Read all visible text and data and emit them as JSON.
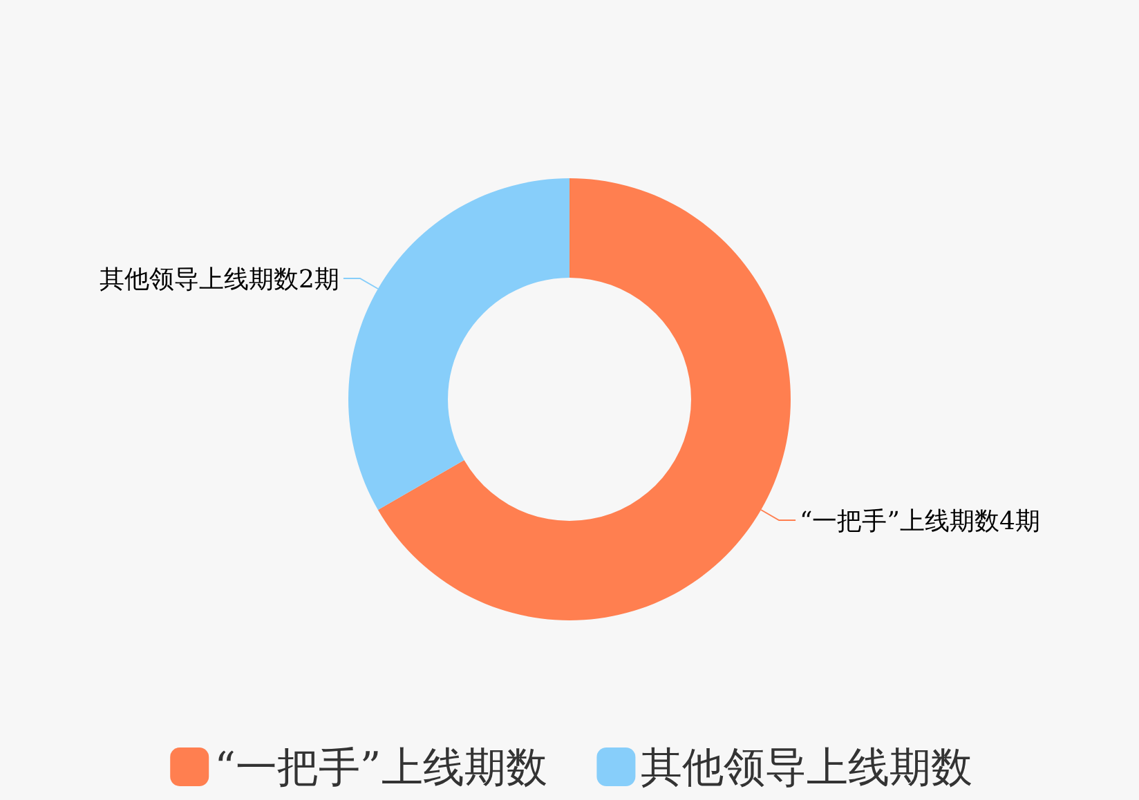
{
  "chart_data": {
    "type": "donut",
    "categories": [
      "“一把手”上线期数",
      "其他领导上线期数"
    ],
    "values": [
      4,
      2
    ],
    "colors": [
      "#ff7f50",
      "#87cefa"
    ],
    "value_labels": [
      "“一把手”上线期数4期",
      "其他领导上线期数2期"
    ],
    "legend": "bottom"
  }
}
